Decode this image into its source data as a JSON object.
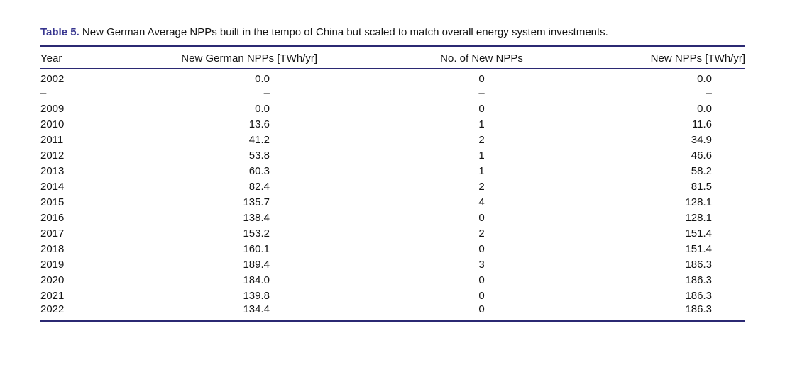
{
  "page": {
    "background": "#ffffff"
  },
  "caption": {
    "label": "Table 5.",
    "text": "New German Average NPPs built in the tempo of China but scaled to match overall energy system investments."
  },
  "chart_data": {
    "type": "table",
    "title": "Table 5. New German Average NPPs built in the tempo of China but scaled to match overall energy system investments.",
    "columns": [
      "Year",
      "New German NPPs [TWh/yr]",
      "No. of New NPPs",
      "New NPPs [TWh/yr]"
    ],
    "column_alignments": [
      "left",
      "right",
      "center",
      "right"
    ],
    "rows": [
      [
        "2002",
        "0.0",
        "0",
        "0.0"
      ],
      [
        "–",
        "–",
        "–",
        "–"
      ],
      [
        "2009",
        "0.0",
        "0",
        "0.0"
      ],
      [
        "2010",
        "13.6",
        "1",
        "11.6"
      ],
      [
        "2011",
        "41.2",
        "2",
        "34.9"
      ],
      [
        "2012",
        "53.8",
        "1",
        "46.6"
      ],
      [
        "2013",
        "60.3",
        "1",
        "58.2"
      ],
      [
        "2014",
        "82.4",
        "2",
        "81.5"
      ],
      [
        "2015",
        "135.7",
        "4",
        "128.1"
      ],
      [
        "2016",
        "138.4",
        "0",
        "128.1"
      ],
      [
        "2017",
        "153.2",
        "2",
        "151.4"
      ],
      [
        "2018",
        "160.1",
        "0",
        "151.4"
      ],
      [
        "2019",
        "189.4",
        "3",
        "186.3"
      ],
      [
        "2020",
        "184.0",
        "0",
        "186.3"
      ],
      [
        "2021",
        "139.8",
        "0",
        "186.3"
      ],
      [
        "2022",
        "134.4",
        "0",
        "186.3"
      ]
    ]
  },
  "colors": {
    "caption_label": "#37358f",
    "rules": "#2b2973",
    "text": "#141414"
  }
}
